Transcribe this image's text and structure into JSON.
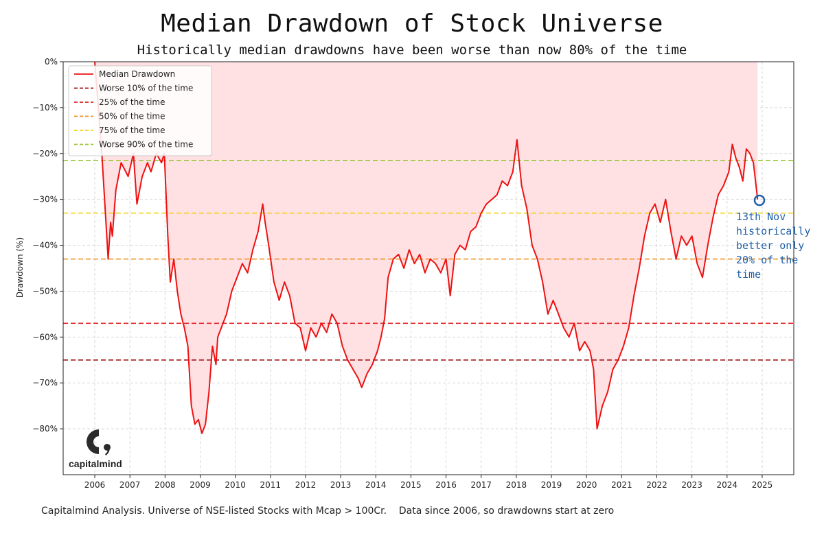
{
  "title": "Median Drawdown of Stock Universe",
  "subtitle": "Historically median drawdowns have been worse than now 80% of the time",
  "footer": "Capitalmind Analysis. Universe of NSE-listed Stocks with Mcap > 100Cr.    Data since 2006, so drawdowns start at zero",
  "annotation": {
    "lines": [
      "13th Nov",
      "historically",
      "better only",
      "20% of the",
      "time"
    ],
    "color": "#1f5fa8"
  },
  "logo": {
    "text": "capitalmind",
    "icon": "capitalmind-c-logo-icon"
  },
  "chart_data": {
    "type": "line",
    "ylabel": "Drawdown (%)",
    "xlabel": "",
    "ylim": [
      -90,
      0
    ],
    "xlim": [
      2005.1,
      2025.9
    ],
    "x_ticks": [
      "2006",
      "2007",
      "2008",
      "2009",
      "2010",
      "2011",
      "2012",
      "2013",
      "2014",
      "2015",
      "2016",
      "2017",
      "2018",
      "2019",
      "2020",
      "2021",
      "2022",
      "2023",
      "2024",
      "2025"
    ],
    "y_ticks": [
      "0%",
      "−10%",
      "−20%",
      "−30%",
      "−40%",
      "−50%",
      "−60%",
      "−70%",
      "−80%"
    ],
    "y_tick_values": [
      0,
      -10,
      -20,
      -30,
      -40,
      -50,
      -60,
      -70,
      -80
    ],
    "grid": true,
    "legend_position": "top-left",
    "fill_color": "#ffe0e3",
    "series": [
      {
        "name": "Median Drawdown",
        "color": "#ee1111",
        "style": "solid",
        "x": [
          2006.0,
          2006.2,
          2006.38,
          2006.45,
          2006.5,
          2006.6,
          2006.75,
          2006.95,
          2007.1,
          2007.2,
          2007.35,
          2007.5,
          2007.6,
          2007.75,
          2007.9,
          2007.98,
          2008.08,
          2008.15,
          2008.25,
          2008.35,
          2008.45,
          2008.55,
          2008.65,
          2008.75,
          2008.85,
          2008.95,
          2009.05,
          2009.15,
          2009.25,
          2009.35,
          2009.45,
          2009.5,
          2009.6,
          2009.75,
          2009.9,
          2010.05,
          2010.2,
          2010.35,
          2010.5,
          2010.65,
          2010.78,
          2010.85,
          2010.95,
          2011.1,
          2011.25,
          2011.4,
          2011.55,
          2011.7,
          2011.85,
          2012.0,
          2012.15,
          2012.3,
          2012.45,
          2012.6,
          2012.75,
          2012.9,
          2013.05,
          2013.2,
          2013.35,
          2013.5,
          2013.6,
          2013.75,
          2013.9,
          2014.05,
          2014.15,
          2014.25,
          2014.35,
          2014.5,
          2014.65,
          2014.8,
          2014.95,
          2015.1,
          2015.25,
          2015.4,
          2015.55,
          2015.7,
          2015.85,
          2016.0,
          2016.12,
          2016.25,
          2016.4,
          2016.55,
          2016.7,
          2016.85,
          2017.0,
          2017.15,
          2017.3,
          2017.45,
          2017.6,
          2017.75,
          2017.9,
          2018.02,
          2018.15,
          2018.3,
          2018.45,
          2018.6,
          2018.75,
          2018.9,
          2019.05,
          2019.2,
          2019.35,
          2019.5,
          2019.65,
          2019.8,
          2019.95,
          2020.1,
          2020.2,
          2020.3,
          2020.45,
          2020.6,
          2020.75,
          2020.9,
          2021.05,
          2021.2,
          2021.35,
          2021.5,
          2021.65,
          2021.8,
          2021.95,
          2022.1,
          2022.25,
          2022.4,
          2022.55,
          2022.7,
          2022.85,
          2023.0,
          2023.15,
          2023.3,
          2023.45,
          2023.6,
          2023.75,
          2023.9,
          2024.05,
          2024.15,
          2024.25,
          2024.35,
          2024.45,
          2024.55,
          2024.65,
          2024.75,
          2024.87
        ],
        "y": [
          0,
          -20,
          -43,
          -35,
          -38,
          -28,
          -22,
          -25,
          -20,
          -31,
          -25,
          -22,
          -24,
          -20,
          -22,
          -20,
          -38,
          -48,
          -43,
          -50,
          -55,
          -58,
          -62,
          -75,
          -79,
          -78,
          -81,
          -79,
          -72,
          -62,
          -66,
          -60,
          -58,
          -55,
          -50,
          -47,
          -44,
          -46,
          -41,
          -37,
          -31,
          -35,
          -40,
          -48,
          -52,
          -48,
          -51,
          -57,
          -58,
          -63,
          -58,
          -60,
          -57,
          -59,
          -55,
          -57,
          -62,
          -65,
          -67,
          -69,
          -71,
          -68,
          -66,
          -63,
          -60,
          -56,
          -47,
          -43,
          -42,
          -45,
          -41,
          -44,
          -42,
          -46,
          -43,
          -44,
          -46,
          -43,
          -51,
          -42,
          -40,
          -41,
          -37,
          -36,
          -33,
          -31,
          -30,
          -29,
          -26,
          -27,
          -24,
          -17,
          -27,
          -32,
          -40,
          -43,
          -48,
          -55,
          -52,
          -55,
          -58,
          -60,
          -57,
          -63,
          -61,
          -63,
          -67,
          -80,
          -75,
          -72,
          -67,
          -65,
          -62,
          -58,
          -51,
          -45,
          -38,
          -33,
          -31,
          -35,
          -30,
          -37,
          -43,
          -38,
          -40,
          -38,
          -44,
          -47,
          -40,
          -34,
          -29,
          -27,
          -24,
          -18,
          -21,
          -23,
          -26,
          -19,
          -20,
          -22,
          -30
        ]
      },
      {
        "name": "Worse 10% of the time",
        "color": "#a10e0e",
        "style": "dashed",
        "level": -65
      },
      {
        "name": "25% of the time",
        "color": "#e32222",
        "style": "dashed",
        "level": -57
      },
      {
        "name": "50% of the time",
        "color": "#f08a12",
        "style": "dashed",
        "level": -43
      },
      {
        "name": "75% of the time",
        "color": "#f2d21a",
        "style": "dashed",
        "level": -33
      },
      {
        "name": "Worse 90% of the time",
        "color": "#9bc43c",
        "style": "dashed",
        "level": -21.5
      }
    ]
  }
}
